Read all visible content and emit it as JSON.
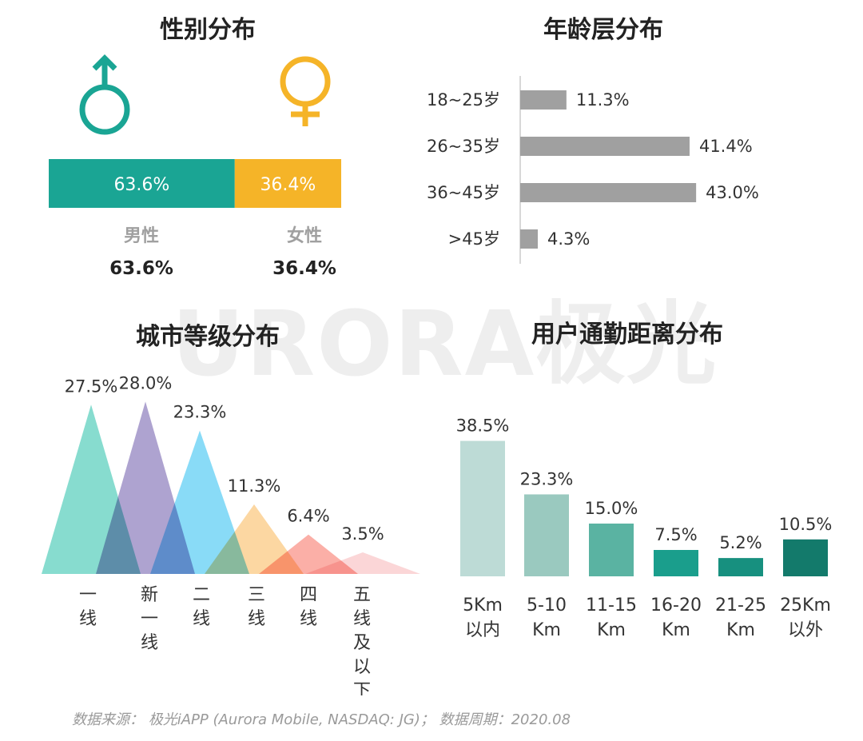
{
  "watermark": {
    "text": "URORA极光"
  },
  "footer": "数据来源： 极光iAPP (Aurora Mobile, NASDAQ: JG)； 数据周期：2020.08",
  "chart_data": [
    {
      "type": "bar",
      "title": "性别分布",
      "categories": [
        "男性",
        "女性"
      ],
      "values": [
        63.6,
        36.4
      ],
      "bar_labels": [
        "63.6%",
        "36.4%"
      ],
      "value_labels": [
        "63.6%",
        "36.4%"
      ],
      "colors": [
        "#1aa594",
        "#f5b428"
      ],
      "icons": [
        "male-icon",
        "female-icon"
      ]
    },
    {
      "type": "bar",
      "title": "年龄层分布",
      "categories": [
        "18~25岁",
        "26~35岁",
        "36~45岁",
        ">45岁"
      ],
      "values": [
        11.3,
        41.4,
        43.0,
        4.3
      ],
      "value_labels": [
        "11.3%",
        "41.4%",
        "43.0%",
        "4.3%"
      ],
      "color": "#a0a0a0",
      "orientation": "horizontal"
    },
    {
      "type": "area",
      "title": "城市等级分布",
      "categories": [
        "一\n线",
        "新\n一\n线",
        "二\n线",
        "三\n线",
        "四\n线",
        "五\n线\n及\n以\n下"
      ],
      "values": [
        27.5,
        28.0,
        23.3,
        11.3,
        6.4,
        3.5
      ],
      "value_labels": [
        "27.5%",
        "28.0%",
        "23.3%",
        "11.3%",
        "6.4%",
        "3.5%"
      ],
      "colors": [
        "#7dd9cb",
        "#a79bcc",
        "#7fd8f6",
        "#fcd49a",
        "#fba8a0",
        "#fbd2d4"
      ]
    },
    {
      "type": "bar",
      "title": "用户通勤距离分布",
      "categories": [
        "5Km\n以内",
        "5-10\nKm",
        "11-15\nKm",
        "16-20\nKm",
        "21-25\nKm",
        "25Km\n以外"
      ],
      "values": [
        38.5,
        23.3,
        15.0,
        7.5,
        5.2,
        10.5
      ],
      "value_labels": [
        "38.5%",
        "23.3%",
        "15.0%",
        "7.5%",
        "5.2%",
        "10.5%"
      ],
      "colors": [
        "#bddbd6",
        "#9ac9bf",
        "#5ab3a2",
        "#1a9e8c",
        "#17907f",
        "#137a6b"
      ]
    }
  ]
}
